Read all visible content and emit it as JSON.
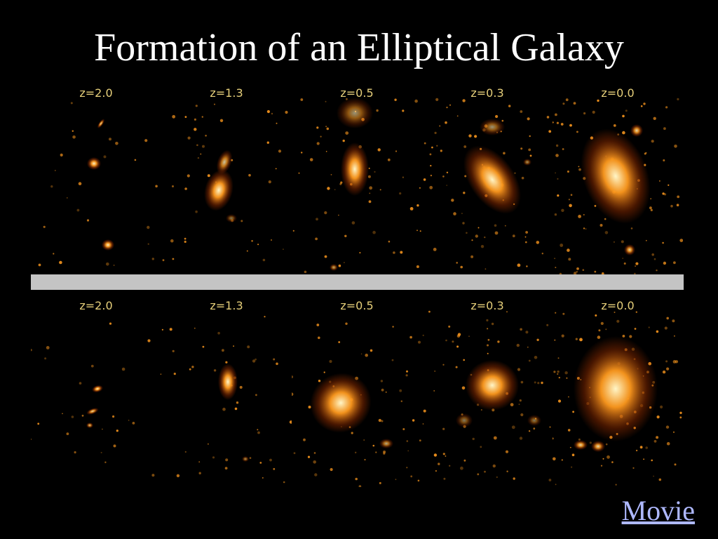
{
  "slide": {
    "title": "Formation of an Elliptical Galaxy",
    "movie_link": "Movie"
  },
  "colors": {
    "background": "#000000",
    "divider": "#c4c4c4",
    "label": "#e6cf7a",
    "link": "#aeb8ff",
    "glow_core": "#fff6c8",
    "glow_mid": "#ff9a1e",
    "glow_edge": "#8a2a00"
  },
  "simulation_rows": [
    {
      "frames": [
        {
          "label": "z=2.0",
          "icon": "galaxy-clumps"
        },
        {
          "label": "z=1.3",
          "icon": "galaxy-merger"
        },
        {
          "label": "z=0.5",
          "icon": "galaxy-elongated"
        },
        {
          "label": "z=0.3",
          "icon": "galaxy-elongated"
        },
        {
          "label": "z=0.0",
          "icon": "galaxy-elliptical"
        }
      ]
    },
    {
      "frames": [
        {
          "label": "z=2.0",
          "icon": "galaxy-clumps"
        },
        {
          "label": "z=1.3",
          "icon": "galaxy-merger"
        },
        {
          "label": "z=0.5",
          "icon": "galaxy-filament"
        },
        {
          "label": "z=0.3",
          "icon": "galaxy-filament"
        },
        {
          "label": "z=0.0",
          "icon": "galaxy-elliptical"
        }
      ]
    }
  ]
}
